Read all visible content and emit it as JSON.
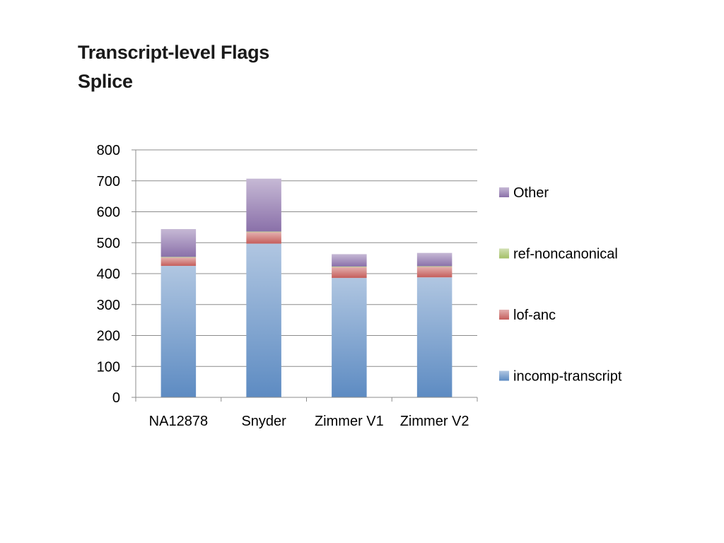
{
  "page": {
    "title_line1": "Transcript-level Flags",
    "title_line2": "Splice"
  },
  "chart_data": {
    "type": "bar",
    "stacked": true,
    "categories": [
      "NA12878",
      "Snyder",
      "Zimmer V1",
      "Zimmer V2"
    ],
    "series": [
      {
        "name": "incomp-transcript",
        "values": [
          425,
          497,
          386,
          388
        ],
        "color": "#4f81bd"
      },
      {
        "name": "lof-anc",
        "values": [
          27,
          37,
          35,
          34
        ],
        "color": "#c0504d"
      },
      {
        "name": "ref-noncanonical",
        "values": [
          2,
          2,
          2,
          2
        ],
        "color": "#9bbb59"
      },
      {
        "name": "Other",
        "values": [
          90,
          171,
          40,
          43
        ],
        "color": "#8064a2"
      }
    ],
    "ylim": [
      0,
      800
    ],
    "yticks": [
      0,
      100,
      200,
      300,
      400,
      500,
      600,
      700,
      800
    ],
    "grid": true,
    "legend_position": "right"
  }
}
